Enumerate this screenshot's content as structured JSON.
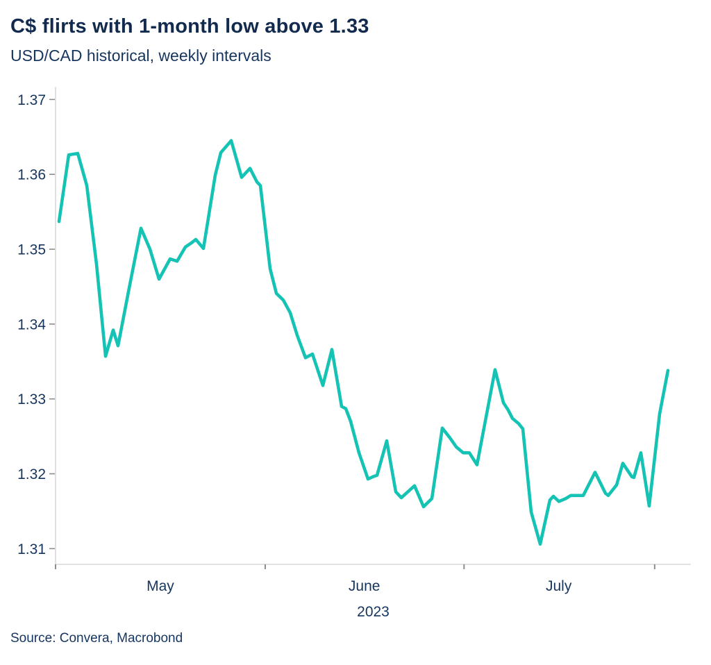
{
  "header": {
    "title": "C$ flirts with 1-month low above 1.33",
    "subtitle": "USD/CAD historical, weekly intervals"
  },
  "footer": {
    "source": "Source: Convera, Macrobond"
  },
  "colors": {
    "text_navy": "#16355e",
    "title_navy": "#112a4d",
    "line_teal": "#14c3b4",
    "axis_gray": "#d9d9d9",
    "tick_gray": "#8c8c8c"
  },
  "chart_data": {
    "type": "line",
    "title": "C$ flirts with 1-month low above 1.33",
    "subtitle": "USD/CAD historical, weekly intervals",
    "xlabel": "",
    "ylabel": "",
    "legend": "none",
    "grid": "off",
    "ylim": [
      1.3079,
      1.3717
    ],
    "y_tick_labels": [
      "1.37",
      "1.36",
      "1.35",
      "1.34",
      "1.33",
      "1.32",
      "1.31"
    ],
    "x_tick_positions_pct": [
      0,
      33.0,
      64.3,
      94.3
    ],
    "x_labels": [
      {
        "pos_pct": 16.5,
        "label": "May"
      },
      {
        "pos_pct": 48.6,
        "label": "June"
      },
      {
        "pos_pct": 79.2,
        "label": "July"
      }
    ],
    "year_label": "2023",
    "series": [
      {
        "name": "USD/CAD",
        "color": "#14c3b4",
        "points_pct_value": [
          [
            0.55,
            1.3537
          ],
          [
            2.08,
            1.3626
          ],
          [
            3.5,
            1.3628
          ],
          [
            4.92,
            1.3585
          ],
          [
            6.45,
            1.348
          ],
          [
            7.87,
            1.3357
          ],
          [
            9.07,
            1.3392
          ],
          [
            9.84,
            1.3371
          ],
          [
            11.58,
            1.3448
          ],
          [
            13.44,
            1.3528
          ],
          [
            14.86,
            1.35
          ],
          [
            16.28,
            1.346
          ],
          [
            18.03,
            1.3487
          ],
          [
            19.13,
            1.3484
          ],
          [
            20.44,
            1.3503
          ],
          [
            21.31,
            1.3508
          ],
          [
            22.08,
            1.3513
          ],
          [
            23.28,
            1.3501
          ],
          [
            25.14,
            1.3599
          ],
          [
            26.01,
            1.3629
          ],
          [
            27.65,
            1.3645
          ],
          [
            29.29,
            1.3596
          ],
          [
            30.6,
            1.3608
          ],
          [
            31.69,
            1.359
          ],
          [
            32.24,
            1.3585
          ],
          [
            33.77,
            1.3474
          ],
          [
            34.75,
            1.3441
          ],
          [
            35.85,
            1.3432
          ],
          [
            36.94,
            1.3415
          ],
          [
            38.03,
            1.3385
          ],
          [
            39.34,
            1.3355
          ],
          [
            40.44,
            1.336
          ],
          [
            42.08,
            1.3318
          ],
          [
            43.5,
            1.3366
          ],
          [
            45.03,
            1.329
          ],
          [
            45.68,
            1.3287
          ],
          [
            46.45,
            1.327
          ],
          [
            47.76,
            1.3228
          ],
          [
            49.18,
            1.3193
          ],
          [
            49.95,
            1.3196
          ],
          [
            50.6,
            1.3198
          ],
          [
            52.13,
            1.3244
          ],
          [
            53.55,
            1.3176
          ],
          [
            54.43,
            1.3168
          ],
          [
            56.5,
            1.3184
          ],
          [
            57.92,
            1.3156
          ],
          [
            59.23,
            1.3167
          ],
          [
            60.87,
            1.3261
          ],
          [
            62.08,
            1.3248
          ],
          [
            63.06,
            1.3236
          ],
          [
            64.15,
            1.3228
          ],
          [
            65.14,
            1.3228
          ],
          [
            66.34,
            1.3212
          ],
          [
            69.18,
            1.3339
          ],
          [
            70.49,
            1.3295
          ],
          [
            71.26,
            1.3285
          ],
          [
            71.91,
            1.3274
          ],
          [
            72.9,
            1.3267
          ],
          [
            73.55,
            1.326
          ],
          [
            74.86,
            1.3149
          ],
          [
            76.28,
            1.3106
          ],
          [
            77.81,
            1.3165
          ],
          [
            78.36,
            1.317
          ],
          [
            79.23,
            1.3163
          ],
          [
            80.33,
            1.3167
          ],
          [
            81.09,
            1.3171
          ],
          [
            83.06,
            1.3171
          ],
          [
            84.92,
            1.3202
          ],
          [
            86.56,
            1.3174
          ],
          [
            87.0,
            1.3171
          ],
          [
            88.31,
            1.3185
          ],
          [
            89.29,
            1.3214
          ],
          [
            90.71,
            1.3196
          ],
          [
            91.04,
            1.3195
          ],
          [
            92.13,
            1.3228
          ],
          [
            93.44,
            1.3157
          ],
          [
            95.08,
            1.328
          ],
          [
            96.39,
            1.3338
          ]
        ]
      }
    ]
  }
}
